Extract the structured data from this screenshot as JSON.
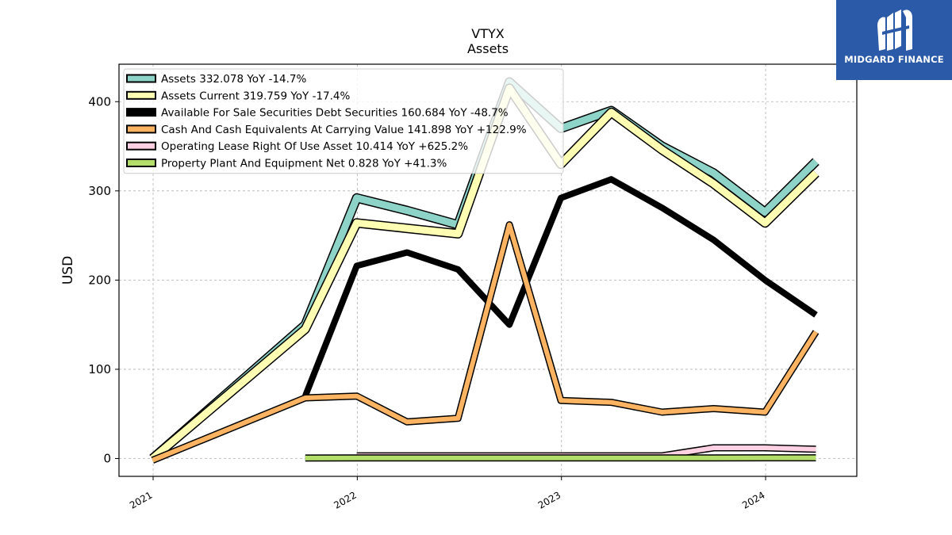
{
  "chart_data": {
    "type": "line",
    "title": "VTYX",
    "subtitle": "Assets",
    "ylabel": "USD",
    "xlabel": "",
    "ylim": [
      -20,
      442
    ],
    "xlim": [
      "2020-11-01",
      "2024-06-12"
    ],
    "yticks": [
      0,
      100,
      200,
      300,
      400
    ],
    "xticks": [
      "2021",
      "2022",
      "2023",
      "2024"
    ],
    "grid": true,
    "legend_position": "top-left",
    "series": [
      {
        "name": "Assets",
        "legend": "Assets  332.078 YoY -14.7%",
        "color": "#8dd3c7",
        "linewidth": 9,
        "x": [
          "2020-12-31",
          "2021-09-30",
          "2021-12-31",
          "2022-03-31",
          "2022-06-30",
          "2022-09-30",
          "2022-12-31",
          "2023-03-31",
          "2023-06-30",
          "2023-09-30",
          "2023-12-31",
          "2024-03-31"
        ],
        "y": [
          0,
          150,
          292,
          278,
          262,
          422,
          370,
          390,
          350,
          320,
          276,
          333
        ]
      },
      {
        "name": "Assets Current",
        "legend": "Assets Current  319.759 YoY -17.4%",
        "color": "#ffffb3",
        "linewidth": 9,
        "x": [
          "2020-12-31",
          "2021-09-30",
          "2021-12-31",
          "2022-03-31",
          "2022-06-30",
          "2022-09-30",
          "2022-12-31",
          "2023-03-31",
          "2023-06-30",
          "2023-09-30",
          "2023-12-31",
          "2024-03-31"
        ],
        "y": [
          0,
          145,
          264,
          258,
          252,
          415,
          330,
          388,
          346,
          308,
          264,
          320
        ]
      },
      {
        "name": "Available For Sale Securities Debt Securities",
        "legend": "Available For Sale Securities Debt Securities  160.684 YoY -48.7%",
        "color": "#000000",
        "linewidth": 8,
        "x": [
          "2021-09-30",
          "2021-12-31",
          "2022-03-31",
          "2022-06-30",
          "2022-09-30",
          "2022-12-31",
          "2023-03-31",
          "2023-06-30",
          "2023-09-30",
          "2023-12-31",
          "2024-03-31"
        ],
        "y": [
          70,
          216,
          231,
          212,
          150,
          292,
          313,
          281,
          245,
          200,
          161
        ]
      },
      {
        "name": "Cash And Cash Equivalents At Carrying Value",
        "legend": "Cash And Cash Equivalents At Carrying Value  141.898 YoY +122.9%",
        "color": "#fdb462",
        "linewidth": 6,
        "x": [
          "2020-12-31",
          "2021-09-30",
          "2021-12-31",
          "2022-03-31",
          "2022-06-30",
          "2022-09-30",
          "2022-12-31",
          "2023-03-31",
          "2023-06-30",
          "2023-09-30",
          "2023-12-31",
          "2024-03-31"
        ],
        "y": [
          -2,
          68,
          70,
          41,
          45,
          262,
          65,
          63,
          52,
          56,
          52,
          142
        ]
      },
      {
        "name": "Operating Lease Right Of Use Asset",
        "legend": "Operating Lease Right Of Use Asset  10.414 YoY +625.2%",
        "color": "#ffd1e3",
        "linewidth": 6,
        "x": [
          "2021-12-31",
          "2022-03-31",
          "2022-06-30",
          "2022-09-30",
          "2022-12-31",
          "2023-03-31",
          "2023-06-30",
          "2023-09-30",
          "2023-12-31",
          "2024-03-31"
        ],
        "y": [
          3,
          3,
          3,
          3,
          3,
          3,
          3,
          12,
          12,
          10.4
        ]
      },
      {
        "name": "Property Plant And Equipment Net",
        "legend": "Property Plant And Equipment Net  0.828 YoY +41.3%",
        "color": "#b3de69",
        "linewidth": 6,
        "x": [
          "2021-09-30",
          "2021-12-31",
          "2022-03-31",
          "2022-06-30",
          "2022-09-30",
          "2022-12-31",
          "2023-03-31",
          "2023-06-30",
          "2023-09-30",
          "2023-12-31",
          "2024-03-31"
        ],
        "y": [
          0.5,
          0.6,
          0.6,
          0.6,
          0.6,
          0.6,
          0.6,
          0.6,
          0.7,
          0.8,
          0.83
        ]
      }
    ]
  },
  "logo": {
    "text": "MIDGARD FINANCE",
    "color": "#2a5aa8"
  }
}
